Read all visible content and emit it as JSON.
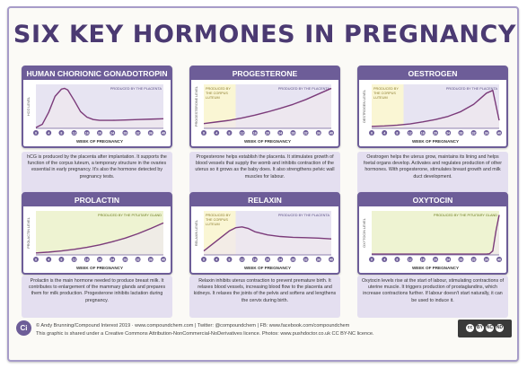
{
  "title": "SIX KEY HORMONES IN PREGNANCY",
  "week_axis_label": "WEEK OF PREGNANCY",
  "week_ticks": [
    "0",
    "4",
    "8",
    "12",
    "16",
    "20",
    "24",
    "28",
    "32",
    "36",
    "40"
  ],
  "colors": {
    "frame_border": "#a79cc9",
    "panel_header": "#6d5d98",
    "title_text": "#4b3a72",
    "curve": "#7b3b7a",
    "plot_fill": "#f0e8ee",
    "corpus_band": "#faf6d4",
    "placenta_band": "#e7e4f2",
    "pituitary_band": "#eef3d2",
    "desc_bg": "#e4dff0"
  },
  "chart_data": [
    {
      "type": "line",
      "title": "HUMAN CHORIONIC GONADOTROPIN",
      "xlabel": "WEEK OF PREGNANCY",
      "ylabel": "HCG LEVEL",
      "bands": [
        {
          "label": "PRODUCED BY THE PLACENTA",
          "from": 0,
          "to": 40,
          "kind": "placenta"
        }
      ],
      "x": [
        0,
        2,
        4,
        6,
        8,
        9,
        10,
        12,
        14,
        16,
        18,
        20,
        24,
        28,
        32,
        36,
        40
      ],
      "values": [
        2,
        10,
        40,
        80,
        98,
        100,
        96,
        70,
        42,
        28,
        22,
        20,
        20,
        21,
        22,
        23,
        24
      ],
      "ylim": [
        0,
        110
      ],
      "description": "hCG is produced by the placenta after implantation. It supports the function of the corpus luteum, a temporary structure in the ovaries essential in early pregnancy. It's also the hormone detected by pregnancy tests."
    },
    {
      "type": "line",
      "title": "PROGESTERONE",
      "xlabel": "WEEK OF PREGNANCY",
      "ylabel": "PROGESTERONE LEVEL",
      "bands": [
        {
          "label": "PRODUCED BY THE CORPUS LUTEUM",
          "from": 0,
          "to": 10,
          "kind": "corpus"
        },
        {
          "label": "PRODUCED BY THE PLACENTA",
          "from": 10,
          "to": 40,
          "kind": "placenta"
        }
      ],
      "x": [
        0,
        4,
        8,
        12,
        16,
        20,
        24,
        28,
        32,
        36,
        40
      ],
      "values": [
        12,
        16,
        20,
        26,
        33,
        41,
        50,
        60,
        72,
        86,
        100
      ],
      "ylim": [
        0,
        110
      ],
      "description": "Progesterone helps establish the placenta. It stimulates growth of blood vessels that supply the womb and inhibits contraction of the uterus so it grows as the baby does. It also strengthens pelvic wall muscles for labour."
    },
    {
      "type": "line",
      "title": "OESTROGEN",
      "xlabel": "WEEK OF PREGNANCY",
      "ylabel": "OESTROGEN LEVEL",
      "bands": [
        {
          "label": "PRODUCED BY THE CORPUS LUTEUM",
          "from": 0,
          "to": 10,
          "kind": "corpus"
        },
        {
          "label": "PRODUCED BY THE PLACENTA",
          "from": 10,
          "to": 40,
          "kind": "placenta"
        }
      ],
      "x": [
        0,
        4,
        8,
        12,
        16,
        20,
        24,
        28,
        32,
        34,
        36,
        38,
        40
      ],
      "values": [
        5,
        6,
        8,
        11,
        16,
        22,
        30,
        42,
        60,
        74,
        88,
        95,
        20
      ],
      "ylim": [
        0,
        110
      ],
      "description": "Oestrogen helps the uterus grow, maintains its lining and helps foetal organs develop. Activates and regulates production of other hormones. With progesterone, stimulates breast growth and milk duct development."
    },
    {
      "type": "line",
      "title": "PROLACTIN",
      "xlabel": "WEEK OF PREGNANCY",
      "ylabel": "PROLACTIN LEVEL",
      "bands": [
        {
          "label": "PRODUCED BY THE PITUITARY GLAND",
          "from": 0,
          "to": 40,
          "kind": "pituitary"
        }
      ],
      "x": [
        0,
        4,
        8,
        12,
        16,
        20,
        24,
        28,
        32,
        36,
        40
      ],
      "values": [
        5,
        7,
        10,
        14,
        19,
        25,
        33,
        42,
        53,
        66,
        80
      ],
      "ylim": [
        0,
        110
      ],
      "description": "Prolactin is the main hormone needed to produce breast milk. It contributes to enlargement of the mammary glands and prepares them for milk production. Progesterone inhibits lactation during pregnancy."
    },
    {
      "type": "line",
      "title": "RELAXIN",
      "xlabel": "WEEK OF PREGNANCY",
      "ylabel": "RELAXIN LEVEL",
      "bands": [
        {
          "label": "PRODUCED BY THE CORPUS LUTEUM",
          "from": 0,
          "to": 10,
          "kind": "corpus"
        },
        {
          "label": "PRODUCED BY THE PLACENTA",
          "from": 10,
          "to": 40,
          "kind": "placenta"
        }
      ],
      "x": [
        0,
        4,
        8,
        10,
        12,
        14,
        16,
        20,
        24,
        28,
        32,
        36,
        40
      ],
      "values": [
        10,
        35,
        60,
        68,
        70,
        66,
        58,
        50,
        46,
        44,
        43,
        42,
        40
      ],
      "ylim": [
        0,
        110
      ],
      "description": "Relaxin inhibits uterus contraction to prevent premature birth. It relaxes blood vessels, increasing blood flow to the placenta and kidneys. It relaxes the joints of the pelvis and softens and lengthens the cervix during birth."
    },
    {
      "type": "line",
      "title": "OXYTOCIN",
      "xlabel": "WEEK OF PREGNANCY",
      "ylabel": "OXYTOCIN LEVEL",
      "bands": [
        {
          "label": "PRODUCED BY THE PITUITARY GLAND",
          "from": 0,
          "to": 40,
          "kind": "pituitary"
        }
      ],
      "x": [
        0,
        4,
        8,
        12,
        16,
        20,
        24,
        28,
        32,
        36,
        37,
        38,
        39,
        40
      ],
      "values": [
        2,
        2,
        2,
        2,
        2,
        2,
        2,
        2,
        2,
        2,
        3,
        10,
        60,
        100
      ],
      "ylim": [
        0,
        110
      ],
      "description": "Oxytocin levels rise at the start of labour, stimulating contractions of uterine muscle. It triggers production of prostaglandins, which increase contractions further. If labour doesn't start naturally, it can be used to induce it."
    }
  ],
  "footer": {
    "logo_text": "Ci",
    "line1": "© Andy Brunning/Compound Interest 2019 · www.compoundchem.com | Twitter: @compoundchem | FB: www.facebook.com/compoundchem",
    "line2": "This graphic is shared under a Creative Commons Attribution-NonCommercial-NoDerivatives licence. Photos: www.pushdoctor.co.uk CC BY-NC licence."
  },
  "license_badge": {
    "cc": "cc",
    "by": "BY",
    "nc": "NC",
    "nd": "ND"
  }
}
